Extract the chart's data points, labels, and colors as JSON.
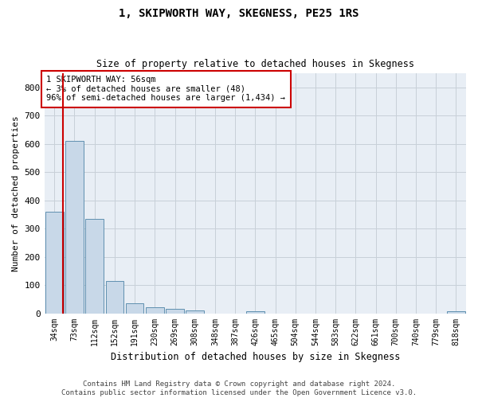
{
  "title": "1, SKIPWORTH WAY, SKEGNESS, PE25 1RS",
  "subtitle": "Size of property relative to detached houses in Skegness",
  "xlabel": "Distribution of detached houses by size in Skegness",
  "ylabel": "Number of detached properties",
  "bar_labels": [
    "34sqm",
    "73sqm",
    "112sqm",
    "152sqm",
    "191sqm",
    "230sqm",
    "269sqm",
    "308sqm",
    "348sqm",
    "387sqm",
    "426sqm",
    "465sqm",
    "504sqm",
    "544sqm",
    "583sqm",
    "622sqm",
    "661sqm",
    "700sqm",
    "740sqm",
    "779sqm",
    "818sqm"
  ],
  "bar_values": [
    360,
    610,
    335,
    115,
    35,
    20,
    15,
    10,
    0,
    0,
    7,
    0,
    0,
    0,
    0,
    0,
    0,
    0,
    0,
    0,
    7
  ],
  "bar_color": "#c8d8e8",
  "bar_edgecolor": "#6090b0",
  "annotation_line1": "1 SKIPWORTH WAY: 56sqm",
  "annotation_line2": "← 3% of detached houses are smaller (48)",
  "annotation_line3": "96% of semi-detached houses are larger (1,434) →",
  "annotation_box_color": "#ffffff",
  "annotation_box_edgecolor": "#cc0000",
  "marker_line_color": "#cc0000",
  "ylim": [
    0,
    850
  ],
  "yticks": [
    0,
    100,
    200,
    300,
    400,
    500,
    600,
    700,
    800
  ],
  "grid_color": "#c8d0d8",
  "footer_text": "Contains HM Land Registry data © Crown copyright and database right 2024.\nContains public sector information licensed under the Open Government Licence v3.0.",
  "bg_color": "#e8eef5",
  "title_fontsize": 10,
  "subtitle_fontsize": 8.5
}
